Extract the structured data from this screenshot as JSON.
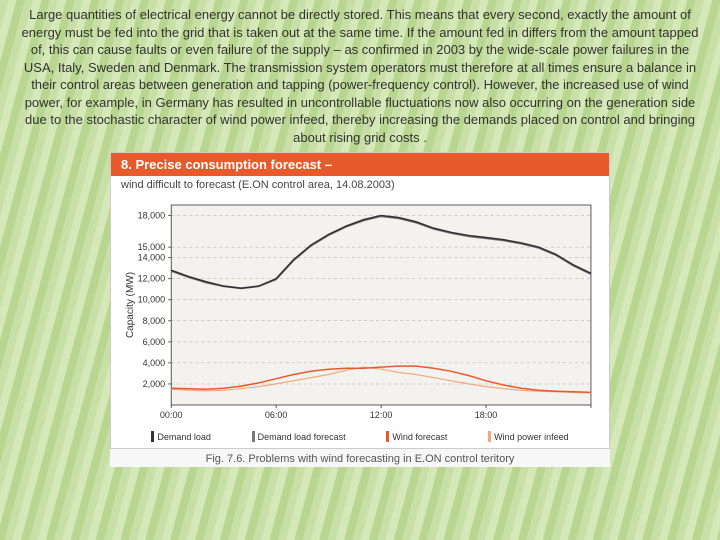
{
  "intro": "Large quantities of electrical energy cannot be directly stored. This means that every second, exactly the amount of energy must be fed into the grid that is taken out at the same time. If the amount fed in differs from the amount tapped of, this can cause faults or even failure of the supply – as confirmed in 2003 by the wide-scale power failures in the USA, Italy, Sweden and Denmark. The transmission system operators must therefore at all times ensure a balance in their control areas between generation and tapping (power-frequency control). However, the increased use of wind power, for example, in Germany has resulted in uncontrollable fluctuations now also occurring on the generation side due to the stochastic character of wind power infeed, thereby increasing the demands placed on control and bringing about rising grid costs .",
  "chart": {
    "header": "8. Precise consumption forecast  –",
    "subtitle": "wind difficult to forecast (E.ON control area, 14.08.2003)",
    "caption": "Fig. 7.6. Problems with wind forecasting in E.ON control teritory",
    "y_label": "Capacity (MW)",
    "y_ticks": [
      2000,
      4000,
      6000,
      8000,
      10000,
      12000,
      14000,
      15000,
      18000
    ],
    "y_tick_labels": [
      "2,000",
      "4,000",
      "6,000",
      "8,000",
      "10,000",
      "12,000",
      "14,000",
      "15,000",
      "18,000"
    ],
    "y_min": 0,
    "y_max": 19000,
    "x_ticks": [
      0,
      6,
      12,
      18,
      24
    ],
    "x_tick_labels": [
      "00:00",
      "06:00",
      "12:00",
      "18:00",
      ""
    ],
    "x_min": 0,
    "x_max": 24,
    "background": "#f4f2ef",
    "grid_color": "#aaaaaa",
    "axis_color": "#333333",
    "tick_fontsize": 9,
    "series": {
      "demand_load": {
        "label": "Demand load",
        "color": "#333333",
        "width": 1.6,
        "data": [
          [
            0,
            12800
          ],
          [
            1,
            12200
          ],
          [
            2,
            11700
          ],
          [
            3,
            11300
          ],
          [
            4,
            11100
          ],
          [
            5,
            11300
          ],
          [
            6,
            12000
          ],
          [
            7,
            13800
          ],
          [
            8,
            15200
          ],
          [
            9,
            16200
          ],
          [
            10,
            17000
          ],
          [
            11,
            17600
          ],
          [
            12,
            18000
          ],
          [
            13,
            17800
          ],
          [
            14,
            17400
          ],
          [
            15,
            16800
          ],
          [
            16,
            16400
          ],
          [
            17,
            16100
          ],
          [
            18,
            15900
          ],
          [
            19,
            15700
          ],
          [
            20,
            15400
          ],
          [
            21,
            15000
          ],
          [
            22,
            14300
          ],
          [
            23,
            13300
          ],
          [
            24,
            12500
          ]
        ]
      },
      "demand_forecast": {
        "label": "Demand load forecast",
        "color": "#7a7a7a",
        "width": 1.2,
        "data": [
          [
            0,
            12700
          ],
          [
            1,
            12100
          ],
          [
            2,
            11600
          ],
          [
            3,
            11250
          ],
          [
            4,
            11050
          ],
          [
            5,
            11250
          ],
          [
            6,
            11900
          ],
          [
            7,
            13700
          ],
          [
            8,
            15100
          ],
          [
            9,
            16100
          ],
          [
            10,
            16900
          ],
          [
            11,
            17500
          ],
          [
            12,
            17900
          ],
          [
            13,
            17700
          ],
          [
            14,
            17300
          ],
          [
            15,
            16700
          ],
          [
            16,
            16300
          ],
          [
            17,
            16000
          ],
          [
            18,
            15800
          ],
          [
            19,
            15600
          ],
          [
            20,
            15300
          ],
          [
            21,
            14900
          ],
          [
            22,
            14200
          ],
          [
            23,
            13200
          ],
          [
            24,
            12400
          ]
        ]
      },
      "wind_forecast": {
        "label": "Wind forecast",
        "color": "#e85a2c",
        "width": 1.5,
        "data": [
          [
            0,
            1600
          ],
          [
            1,
            1550
          ],
          [
            2,
            1500
          ],
          [
            3,
            1600
          ],
          [
            4,
            1800
          ],
          [
            5,
            2100
          ],
          [
            6,
            2500
          ],
          [
            7,
            2900
          ],
          [
            8,
            3200
          ],
          [
            9,
            3400
          ],
          [
            10,
            3500
          ],
          [
            11,
            3500
          ],
          [
            12,
            3600
          ],
          [
            13,
            3700
          ],
          [
            14,
            3700
          ],
          [
            15,
            3500
          ],
          [
            16,
            3200
          ],
          [
            17,
            2800
          ],
          [
            18,
            2300
          ],
          [
            19,
            1900
          ],
          [
            20,
            1600
          ],
          [
            21,
            1400
          ],
          [
            22,
            1300
          ],
          [
            23,
            1250
          ],
          [
            24,
            1200
          ]
        ]
      },
      "wind_infeed": {
        "label": "Wind power infeed",
        "color": "#f2a97a",
        "width": 1.2,
        "data": [
          [
            0,
            1500
          ],
          [
            1,
            1400
          ],
          [
            2,
            1350
          ],
          [
            3,
            1400
          ],
          [
            4,
            1550
          ],
          [
            5,
            1750
          ],
          [
            6,
            2000
          ],
          [
            7,
            2300
          ],
          [
            8,
            2600
          ],
          [
            9,
            2900
          ],
          [
            10,
            3300
          ],
          [
            11,
            3600
          ],
          [
            12,
            3400
          ],
          [
            13,
            3100
          ],
          [
            14,
            2900
          ],
          [
            15,
            2600
          ],
          [
            16,
            2300
          ],
          [
            17,
            2000
          ],
          [
            18,
            1750
          ],
          [
            19,
            1550
          ],
          [
            20,
            1400
          ],
          [
            21,
            1300
          ],
          [
            22,
            1250
          ],
          [
            23,
            1200
          ],
          [
            24,
            1150
          ]
        ]
      }
    },
    "legend_key_colors": [
      "#333333",
      "#7a7a7a",
      "#e85a2c",
      "#f2a97a"
    ]
  }
}
